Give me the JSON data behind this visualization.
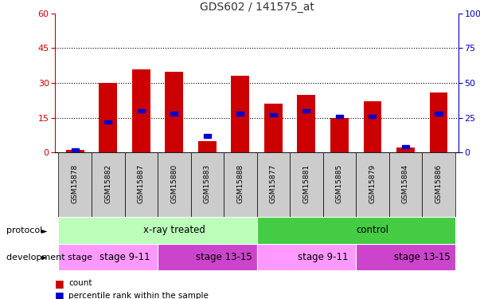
{
  "title": "GDS602 / 141575_at",
  "samples": [
    "GSM15878",
    "GSM15882",
    "GSM15887",
    "GSM15880",
    "GSM15883",
    "GSM15888",
    "GSM15877",
    "GSM15881",
    "GSM15885",
    "GSM15879",
    "GSM15884",
    "GSM15886"
  ],
  "red_values": [
    1,
    30,
    36,
    35,
    5,
    33,
    21,
    25,
    15,
    22,
    2,
    26
  ],
  "blue_values": [
    2,
    22,
    30,
    28,
    12,
    28,
    27,
    30,
    26,
    26,
    4,
    28
  ],
  "red_color": "#cc0000",
  "blue_color": "#0000cc",
  "ylim_left": [
    0,
    60
  ],
  "ylim_right": [
    0,
    100
  ],
  "yticks_left": [
    0,
    15,
    30,
    45,
    60
  ],
  "yticks_right": [
    0,
    25,
    50,
    75,
    100
  ],
  "protocol_groups": [
    {
      "label": "x-ray treated",
      "start": 0,
      "end": 6,
      "color": "#bbffbb"
    },
    {
      "label": "control",
      "start": 6,
      "end": 12,
      "color": "#44cc44"
    }
  ],
  "stage_groups": [
    {
      "label": "stage 9-11",
      "start": 0,
      "end": 3,
      "color": "#ff99ff"
    },
    {
      "label": "stage 13-15",
      "start": 3,
      "end": 6,
      "color": "#cc44cc"
    },
    {
      "label": "stage 9-11",
      "start": 6,
      "end": 9,
      "color": "#ff99ff"
    },
    {
      "label": "stage 13-15",
      "start": 9,
      "end": 12,
      "color": "#cc44cc"
    }
  ],
  "protocol_label": "protocol",
  "stage_label": "development stage",
  "legend_red": "count",
  "legend_blue": "percentile rank within the sample",
  "bar_width": 0.55,
  "title_color": "#333333",
  "left_axis_color": "#cc0000",
  "right_axis_color": "#0000cc",
  "grid_color": "#000000",
  "tick_bg_color": "#cccccc"
}
